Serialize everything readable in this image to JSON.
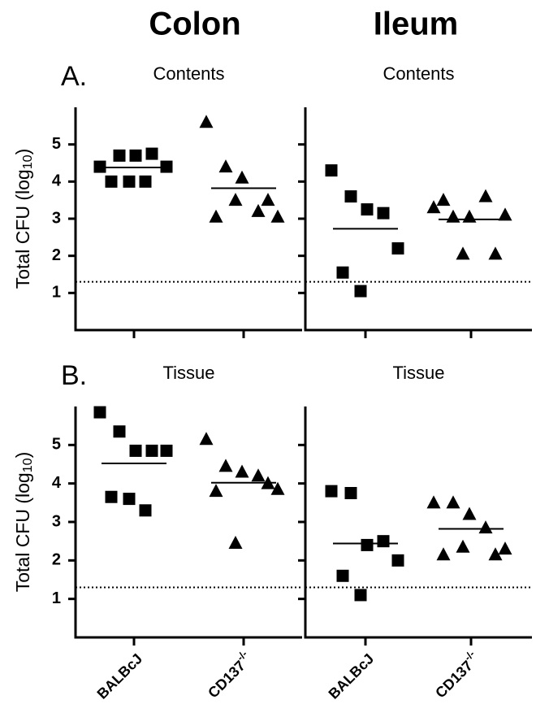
{
  "column_titles": [
    "Colon",
    "Ileum"
  ],
  "panel_labels": [
    "A.",
    "B."
  ],
  "chart_data": [
    {
      "type": "scatter",
      "title": "Contents",
      "ylabel": "Total CFU (log10)",
      "categories": [
        null,
        null
      ],
      "ylim": [
        0,
        6
      ],
      "yticks": [
        1,
        2,
        3,
        4,
        5
      ],
      "show_ytick_labels": true,
      "threshold": 1.3,
      "series": [
        {
          "marker": "square",
          "color": "#000000",
          "values": [
            4.4,
            4.7,
            4.7,
            4.75,
            4.4,
            4.0,
            4.0,
            4.0
          ],
          "mean": 4.38
        },
        {
          "marker": "triangle",
          "color": "#000000",
          "values": [
            5.6,
            4.4,
            4.1,
            3.2,
            3.05,
            3.05,
            3.5,
            3.5
          ],
          "mean": 3.82
        }
      ]
    },
    {
      "type": "scatter",
      "title": "Contents",
      "categories": [
        null,
        null
      ],
      "ylim": [
        0,
        6
      ],
      "yticks": [
        1,
        2,
        3,
        4,
        5
      ],
      "show_ytick_labels": false,
      "threshold": 1.3,
      "series": [
        {
          "marker": "square",
          "color": "#000000",
          "values": [
            4.3,
            3.6,
            3.25,
            3.15,
            2.2,
            1.55,
            1.05
          ],
          "mean": 2.73
        },
        {
          "marker": "triangle",
          "color": "#000000",
          "values": [
            3.3,
            3.05,
            3.05,
            3.6,
            3.1,
            3.5,
            2.05,
            2.05
          ],
          "mean": 2.98
        }
      ]
    },
    {
      "type": "scatter",
      "title": "Tissue",
      "ylabel": "Total CFU (log10)",
      "categories": [
        "BALBcJ",
        "CD137-/-"
      ],
      "ylim": [
        0,
        6
      ],
      "yticks": [
        1,
        2,
        3,
        4,
        5
      ],
      "show_ytick_labels": true,
      "threshold": 1.3,
      "series": [
        {
          "marker": "square",
          "color": "#000000",
          "values": [
            5.85,
            5.35,
            4.85,
            4.85,
            4.85,
            3.65,
            3.6,
            3.3
          ],
          "mean": 4.52
        },
        {
          "marker": "triangle",
          "color": "#000000",
          "values": [
            5.15,
            4.45,
            4.3,
            4.2,
            3.85,
            3.8,
            4.0,
            2.45
          ],
          "mean": 4.02
        }
      ]
    },
    {
      "type": "scatter",
      "title": "Tissue",
      "categories": [
        "BALBcJ",
        "CD137-/-"
      ],
      "ylim": [
        0,
        6
      ],
      "yticks": [
        1,
        2,
        3,
        4,
        5
      ],
      "show_ytick_labels": false,
      "threshold": 1.3,
      "series": [
        {
          "marker": "square",
          "color": "#000000",
          "values": [
            3.8,
            3.75,
            2.4,
            2.5,
            2.0,
            1.6,
            1.1
          ],
          "mean": 2.44
        },
        {
          "marker": "triangle",
          "color": "#000000",
          "values": [
            3.5,
            3.5,
            3.2,
            2.85,
            2.3,
            2.15,
            2.15,
            2.35
          ],
          "mean": 2.82
        }
      ]
    }
  ]
}
